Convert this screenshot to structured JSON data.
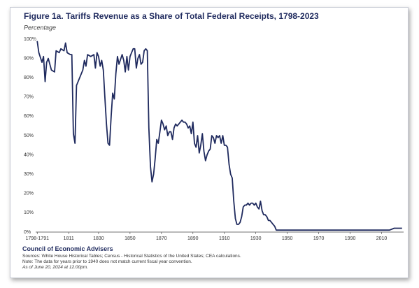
{
  "chart_data": {
    "type": "line",
    "title": "Figure 1a. Tariffs Revenue as a Share of Total Federal Receipts, 1798-2023",
    "subtitle": "Percentage",
    "source_org": "Council of Economic Advisers",
    "notes": [
      "Sources: White House Historical Tables; Census - Historical Statistics of the United States; CEA calculations.",
      "Note: The data for years prior to 1940 does not match current fiscal year convention.",
      "As of June 20, 2024 at 12:00pm."
    ],
    "x": [
      1791,
      1792,
      1794,
      1795,
      1796,
      1797,
      1798,
      1800,
      1802,
      1803,
      1805,
      1806,
      1808,
      1809,
      1810,
      1812,
      1813,
      1814,
      1815,
      1816,
      1818,
      1820,
      1821,
      1822,
      1823,
      1825,
      1827,
      1828,
      1829,
      1830,
      1831,
      1832,
      1833,
      1834,
      1835,
      1836,
      1837,
      1838,
      1839,
      1840,
      1841,
      1842,
      1843,
      1845,
      1846,
      1847,
      1848,
      1849,
      1850,
      1851,
      1852,
      1853,
      1854,
      1855,
      1856,
      1857,
      1858,
      1859,
      1860,
      1861,
      1862,
      1863,
      1864,
      1865,
      1866,
      1867,
      1868,
      1869,
      1870,
      1871,
      1872,
      1873,
      1874,
      1875,
      1876,
      1877,
      1878,
      1879,
      1880,
      1881,
      1882,
      1883,
      1884,
      1885,
      1886,
      1887,
      1888,
      1889,
      1890,
      1891,
      1892,
      1893,
      1894,
      1895,
      1896,
      1897,
      1898,
      1899,
      1900,
      1901,
      1902,
      1903,
      1904,
      1905,
      1906,
      1907,
      1908,
      1909,
      1910,
      1911,
      1912,
      1913,
      1914,
      1915,
      1916,
      1917,
      1918,
      1919,
      1920,
      1921,
      1922,
      1923,
      1924,
      1925,
      1926,
      1927,
      1928,
      1929,
      1930,
      1931,
      1932,
      1933,
      1934,
      1935,
      1936,
      1937,
      1938,
      1939,
      1940,
      1941,
      1942,
      1943,
      1944,
      1945,
      1946,
      1948,
      1950,
      1955,
      1960,
      1965,
      1970,
      1975,
      1980,
      1985,
      1990,
      1995,
      2000,
      2005,
      2010,
      2015,
      2018,
      2020,
      2023
    ],
    "series": [
      {
        "color": "#1f2a5e",
        "values": [
          99,
          93,
          88,
          91,
          78,
          88,
          90,
          84,
          83,
          94,
          93,
          95,
          94,
          98,
          93,
          92,
          92,
          51,
          46,
          76,
          80,
          84,
          89,
          86,
          92,
          91,
          92,
          85,
          93,
          91,
          86,
          89,
          84,
          70,
          56,
          46,
          45,
          60,
          72,
          69,
          82,
          91,
          87,
          92,
          89,
          83,
          91,
          84,
          91,
          93,
          95,
          95,
          85,
          90,
          92,
          87,
          88,
          94,
          95,
          94,
          54,
          34,
          26,
          30,
          38,
          48,
          46,
          52,
          58,
          56,
          53,
          55,
          50,
          52,
          52,
          48,
          54,
          56,
          55,
          56,
          57,
          58,
          57,
          57,
          56,
          54,
          55,
          51,
          57,
          46,
          44,
          50,
          41,
          45,
          51,
          42,
          37,
          40,
          42,
          43,
          50,
          49,
          46,
          50,
          49,
          50,
          46,
          50,
          45,
          45,
          44,
          35,
          30,
          28,
          16,
          7,
          4,
          4,
          5,
          8,
          13,
          14,
          14,
          15,
          14,
          15,
          15,
          14,
          15,
          13,
          12,
          16,
          11,
          9,
          9,
          8,
          6,
          6,
          5,
          4,
          3,
          1,
          1,
          1,
          1,
          1,
          1,
          1,
          1,
          1,
          1,
          1,
          1,
          1,
          1,
          1,
          1,
          1,
          1,
          1,
          2,
          2,
          2
        ]
      }
    ],
    "xlim": [
      1790,
      2024
    ],
    "ylim": [
      0,
      100
    ],
    "xticks": [
      {
        "value": 1791,
        "label": "1798-1791"
      },
      1811,
      1830,
      1850,
      1870,
      1890,
      1910,
      1930,
      1950,
      1970,
      1990,
      2010
    ],
    "yticks": [
      {
        "value": 0,
        "label": "0%"
      },
      {
        "value": 10,
        "label": "10%"
      },
      {
        "value": 20,
        "label": "20%"
      },
      {
        "value": 30,
        "label": "30%"
      },
      {
        "value": 40,
        "label": "40%"
      },
      {
        "value": 50,
        "label": "50%"
      },
      {
        "value": 60,
        "label": "60%"
      },
      {
        "value": 70,
        "label": "70%"
      },
      {
        "value": 80,
        "label": "80%"
      },
      {
        "value": 90,
        "label": "90%"
      },
      {
        "value": 100,
        "label": "100%"
      }
    ]
  }
}
